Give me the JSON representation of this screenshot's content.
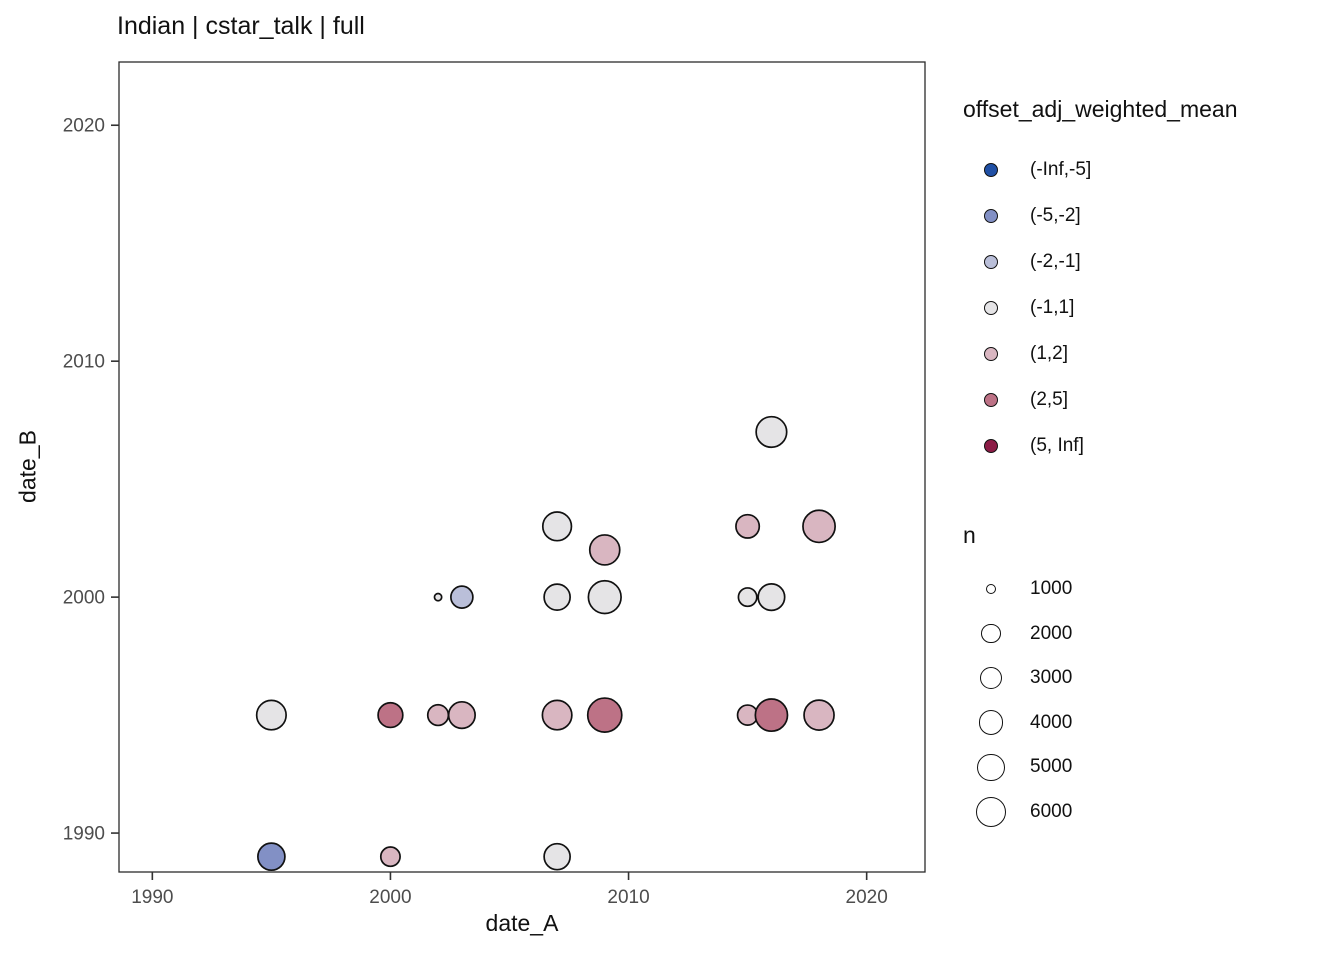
{
  "page": {
    "title": "Indian | cstar_talk | full"
  },
  "chart_data": {
    "type": "scatter",
    "title": "Indian | cstar_talk | full",
    "xlabel": "date_A",
    "ylabel": "date_B",
    "xlim": [
      1988.6,
      2022.45
    ],
    "ylim": [
      1988.35,
      2022.68
    ],
    "xticks": [
      1990,
      2000,
      2010,
      2020
    ],
    "yticks": [
      1990,
      2000,
      2010,
      2020
    ],
    "grid": false,
    "panel_border_color": "#2b2b2b",
    "point_stroke_color": "#111111",
    "tick_label_color": "#4d4d4d",
    "legend_position": "right",
    "color_legend": {
      "title": "offset_adj_weighted_mean",
      "bins": [
        "(-Inf,-5]",
        "(-5,-2]",
        "(-2,-1]",
        "(-1,1]",
        "(1,2]",
        "(2,5]",
        "(5, Inf]"
      ],
      "colors": {
        "(-Inf,-5]": "#2050a5",
        "(-5,-2]": "#8290c5",
        "(-2,-1]": "#babfd9",
        "(-1,1]": "#e5e4e6",
        "(1,2]": "#d9b6c1",
        "(2,5]": "#bd7286",
        "(5, Inf]": "#8c1c46"
      }
    },
    "size_legend": {
      "title": "n",
      "stops": [
        [
          1000,
          5
        ],
        [
          2000,
          9.65
        ],
        [
          3000,
          11
        ],
        [
          4000,
          12.35
        ],
        [
          5000,
          13.65
        ],
        [
          6000,
          15
        ]
      ]
    },
    "points": [
      {
        "date_A": 1995,
        "date_B": 1989,
        "n": 4900,
        "bin": "(-5,-2]"
      },
      {
        "date_A": 2000,
        "date_B": 1989,
        "n": 2000,
        "bin": "(1,2]"
      },
      {
        "date_A": 2007,
        "date_B": 1989,
        "n": 4500,
        "bin": "(-1,1]"
      },
      {
        "date_A": 1995,
        "date_B": 1995,
        "n": 5800,
        "bin": "(-1,1]"
      },
      {
        "date_A": 2000,
        "date_B": 1995,
        "n": 4000,
        "bin": "(2,5]"
      },
      {
        "date_A": 2002,
        "date_B": 1995,
        "n": 2500,
        "bin": "(1,2]"
      },
      {
        "date_A": 2003,
        "date_B": 1995,
        "n": 4700,
        "bin": "(1,2]"
      },
      {
        "date_A": 2007,
        "date_B": 1995,
        "n": 5800,
        "bin": "(1,2]"
      },
      {
        "date_A": 2009,
        "date_B": 1995,
        "n": 7500,
        "bin": "(2,5]"
      },
      {
        "date_A": 2015,
        "date_B": 1995,
        "n": 2300,
        "bin": "(1,2]"
      },
      {
        "date_A": 2016,
        "date_B": 1995,
        "n": 6800,
        "bin": "(2,5]"
      },
      {
        "date_A": 2018,
        "date_B": 1995,
        "n": 6000,
        "bin": "(1,2]"
      },
      {
        "date_A": 2002,
        "date_B": 2000,
        "n": 700,
        "bin": "(-1,1]"
      },
      {
        "date_A": 2003,
        "date_B": 2000,
        "n": 3000,
        "bin": "(-2,-1]"
      },
      {
        "date_A": 2007,
        "date_B": 2000,
        "n": 4500,
        "bin": "(-1,1]"
      },
      {
        "date_A": 2009,
        "date_B": 2000,
        "n": 7000,
        "bin": "(-1,1]"
      },
      {
        "date_A": 2015,
        "date_B": 2000,
        "n": 1900,
        "bin": "(-1,1]"
      },
      {
        "date_A": 2016,
        "date_B": 2000,
        "n": 4700,
        "bin": "(-1,1]"
      },
      {
        "date_A": 2007,
        "date_B": 2003,
        "n": 5500,
        "bin": "(-1,1]"
      },
      {
        "date_A": 2009,
        "date_B": 2002,
        "n": 6000,
        "bin": "(1,2]"
      },
      {
        "date_A": 2015,
        "date_B": 2003,
        "n": 3500,
        "bin": "(1,2]"
      },
      {
        "date_A": 2018,
        "date_B": 2003,
        "n": 6800,
        "bin": "(1,2]"
      },
      {
        "date_A": 2016,
        "date_B": 2007,
        "n": 6200,
        "bin": "(-1,1]"
      }
    ]
  }
}
